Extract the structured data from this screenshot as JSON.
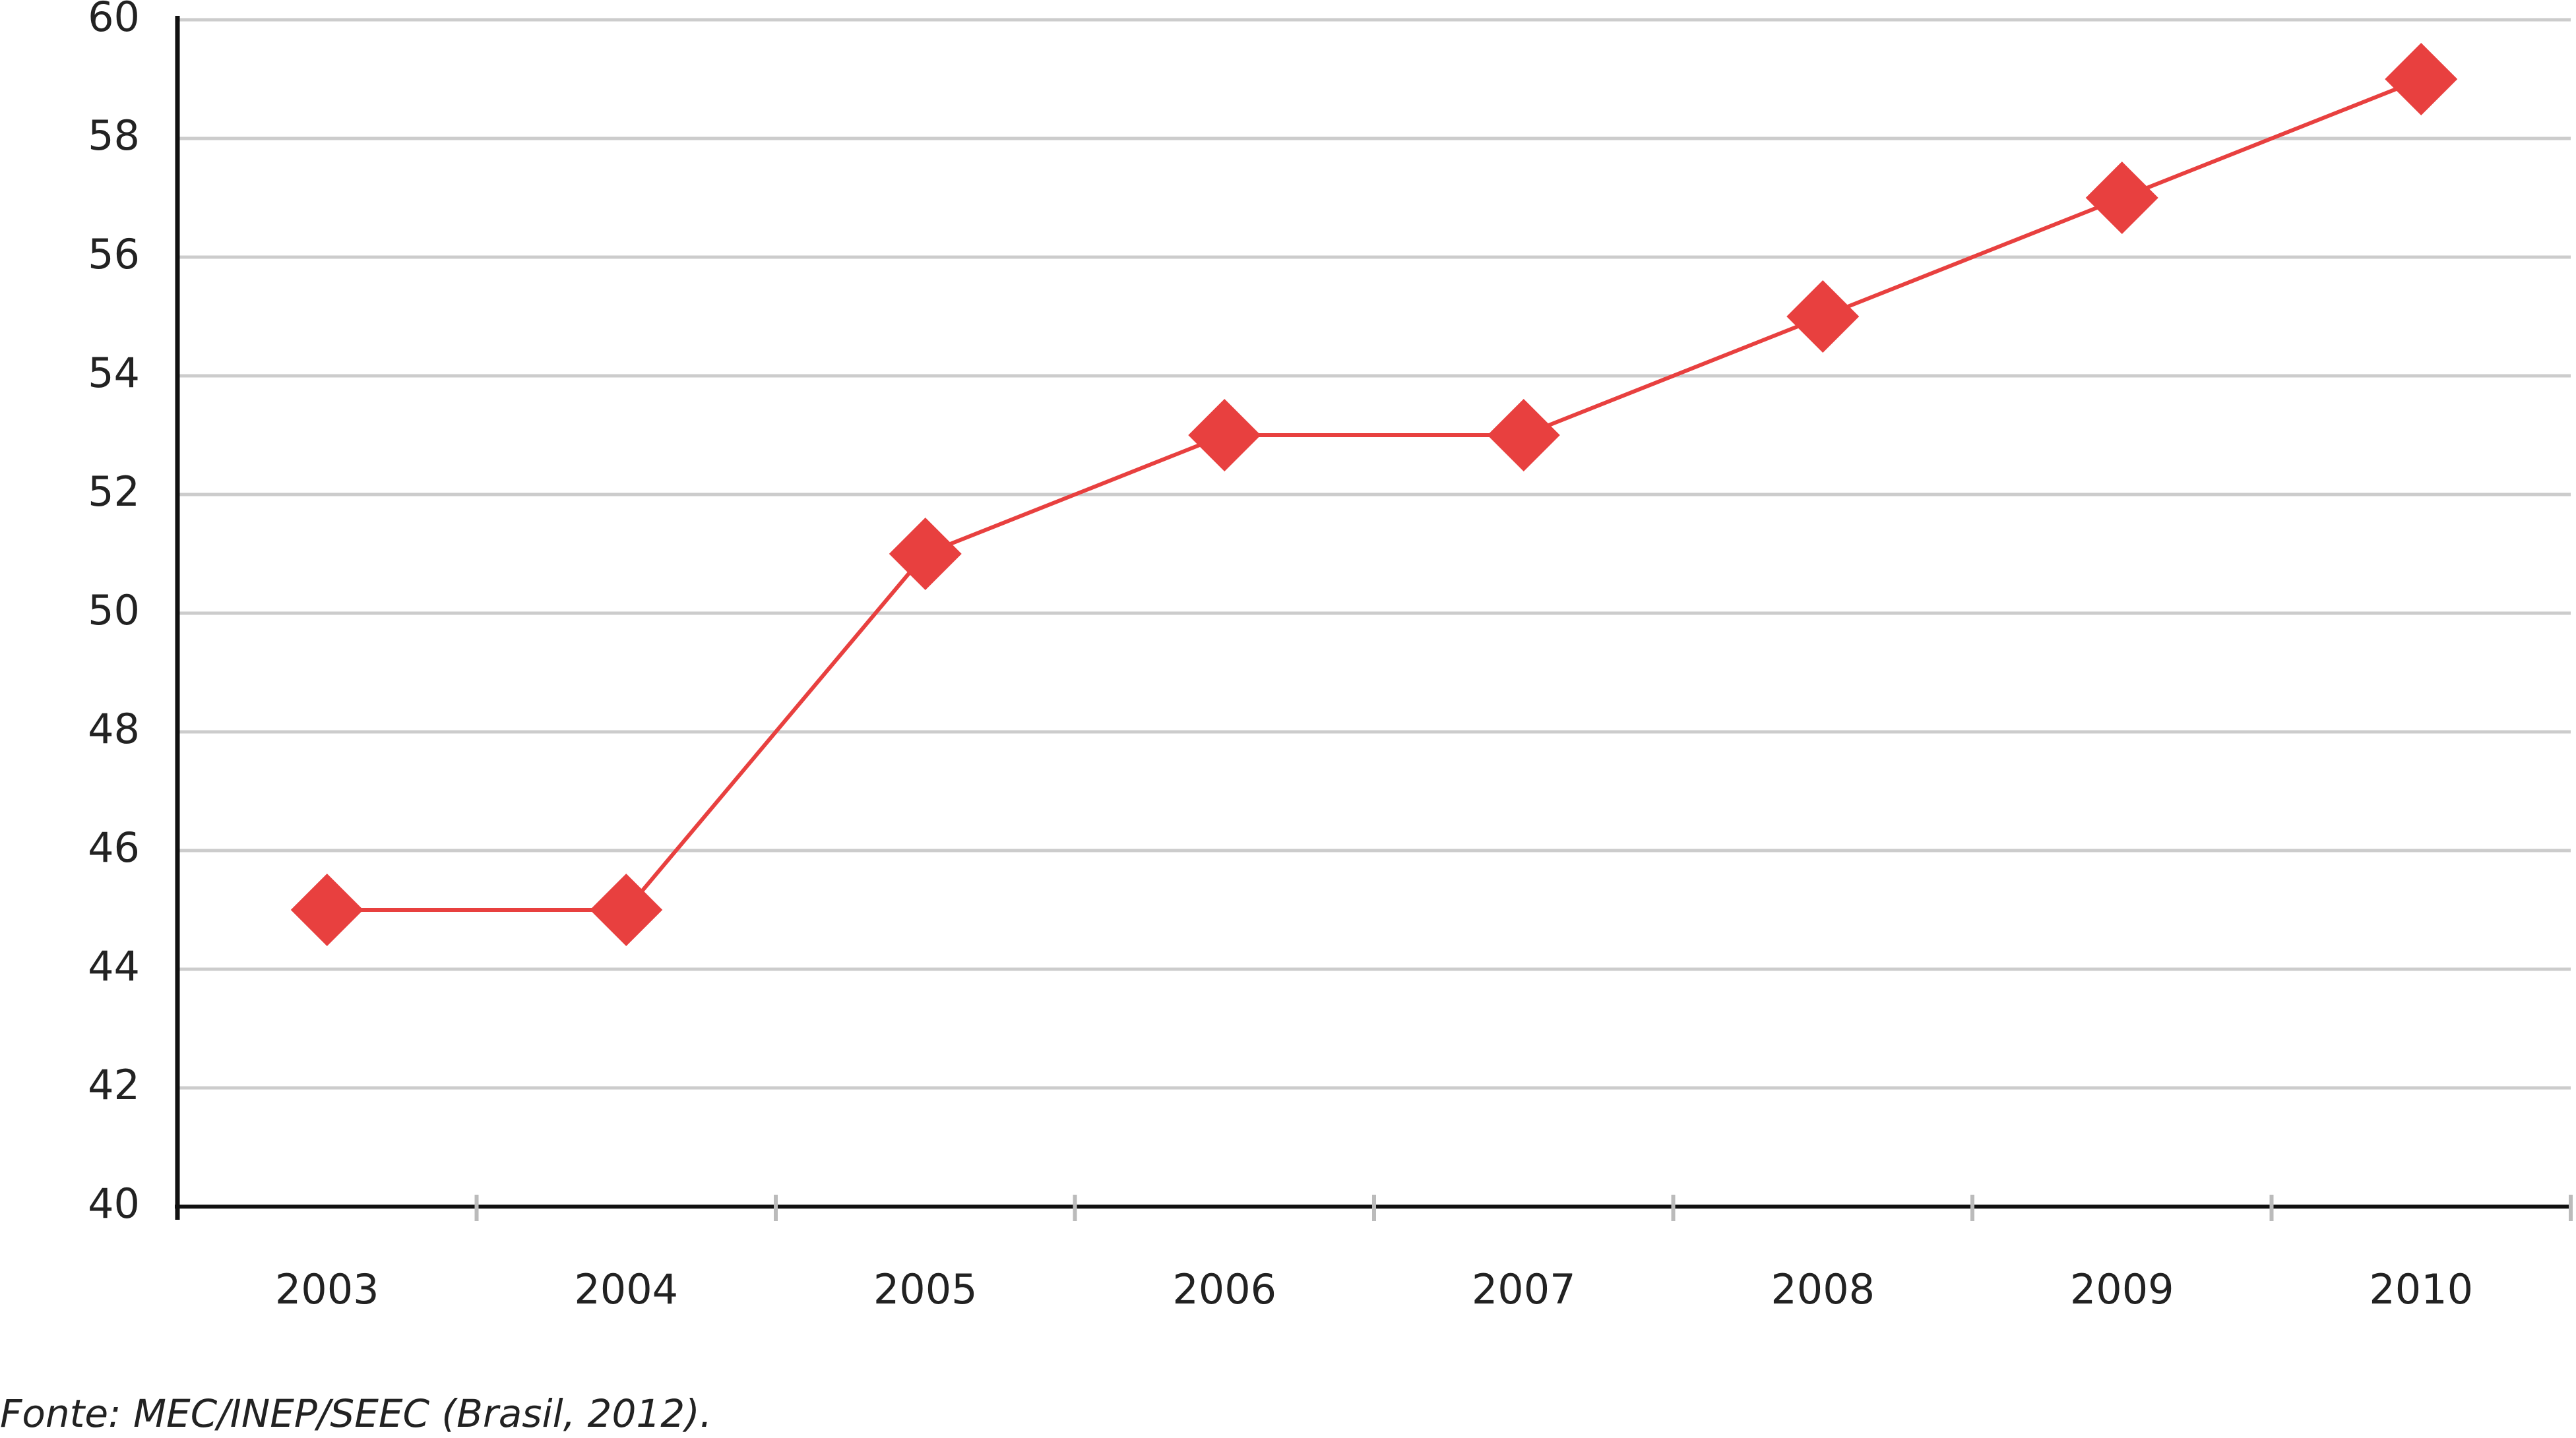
{
  "chart_data": {
    "type": "line",
    "categories": [
      "2003",
      "2004",
      "2005",
      "2006",
      "2007",
      "2008",
      "2009",
      "2010"
    ],
    "values": [
      45,
      45,
      51,
      53,
      53,
      55,
      57,
      59
    ],
    "color": "#e8403f",
    "ylim": [
      40,
      60
    ],
    "yticks": [
      40,
      42,
      44,
      46,
      48,
      50,
      52,
      54,
      56,
      58,
      60
    ],
    "grid": true,
    "source": "Fonte: MEC/INEP/SEEC (Brasil, 2012)."
  }
}
